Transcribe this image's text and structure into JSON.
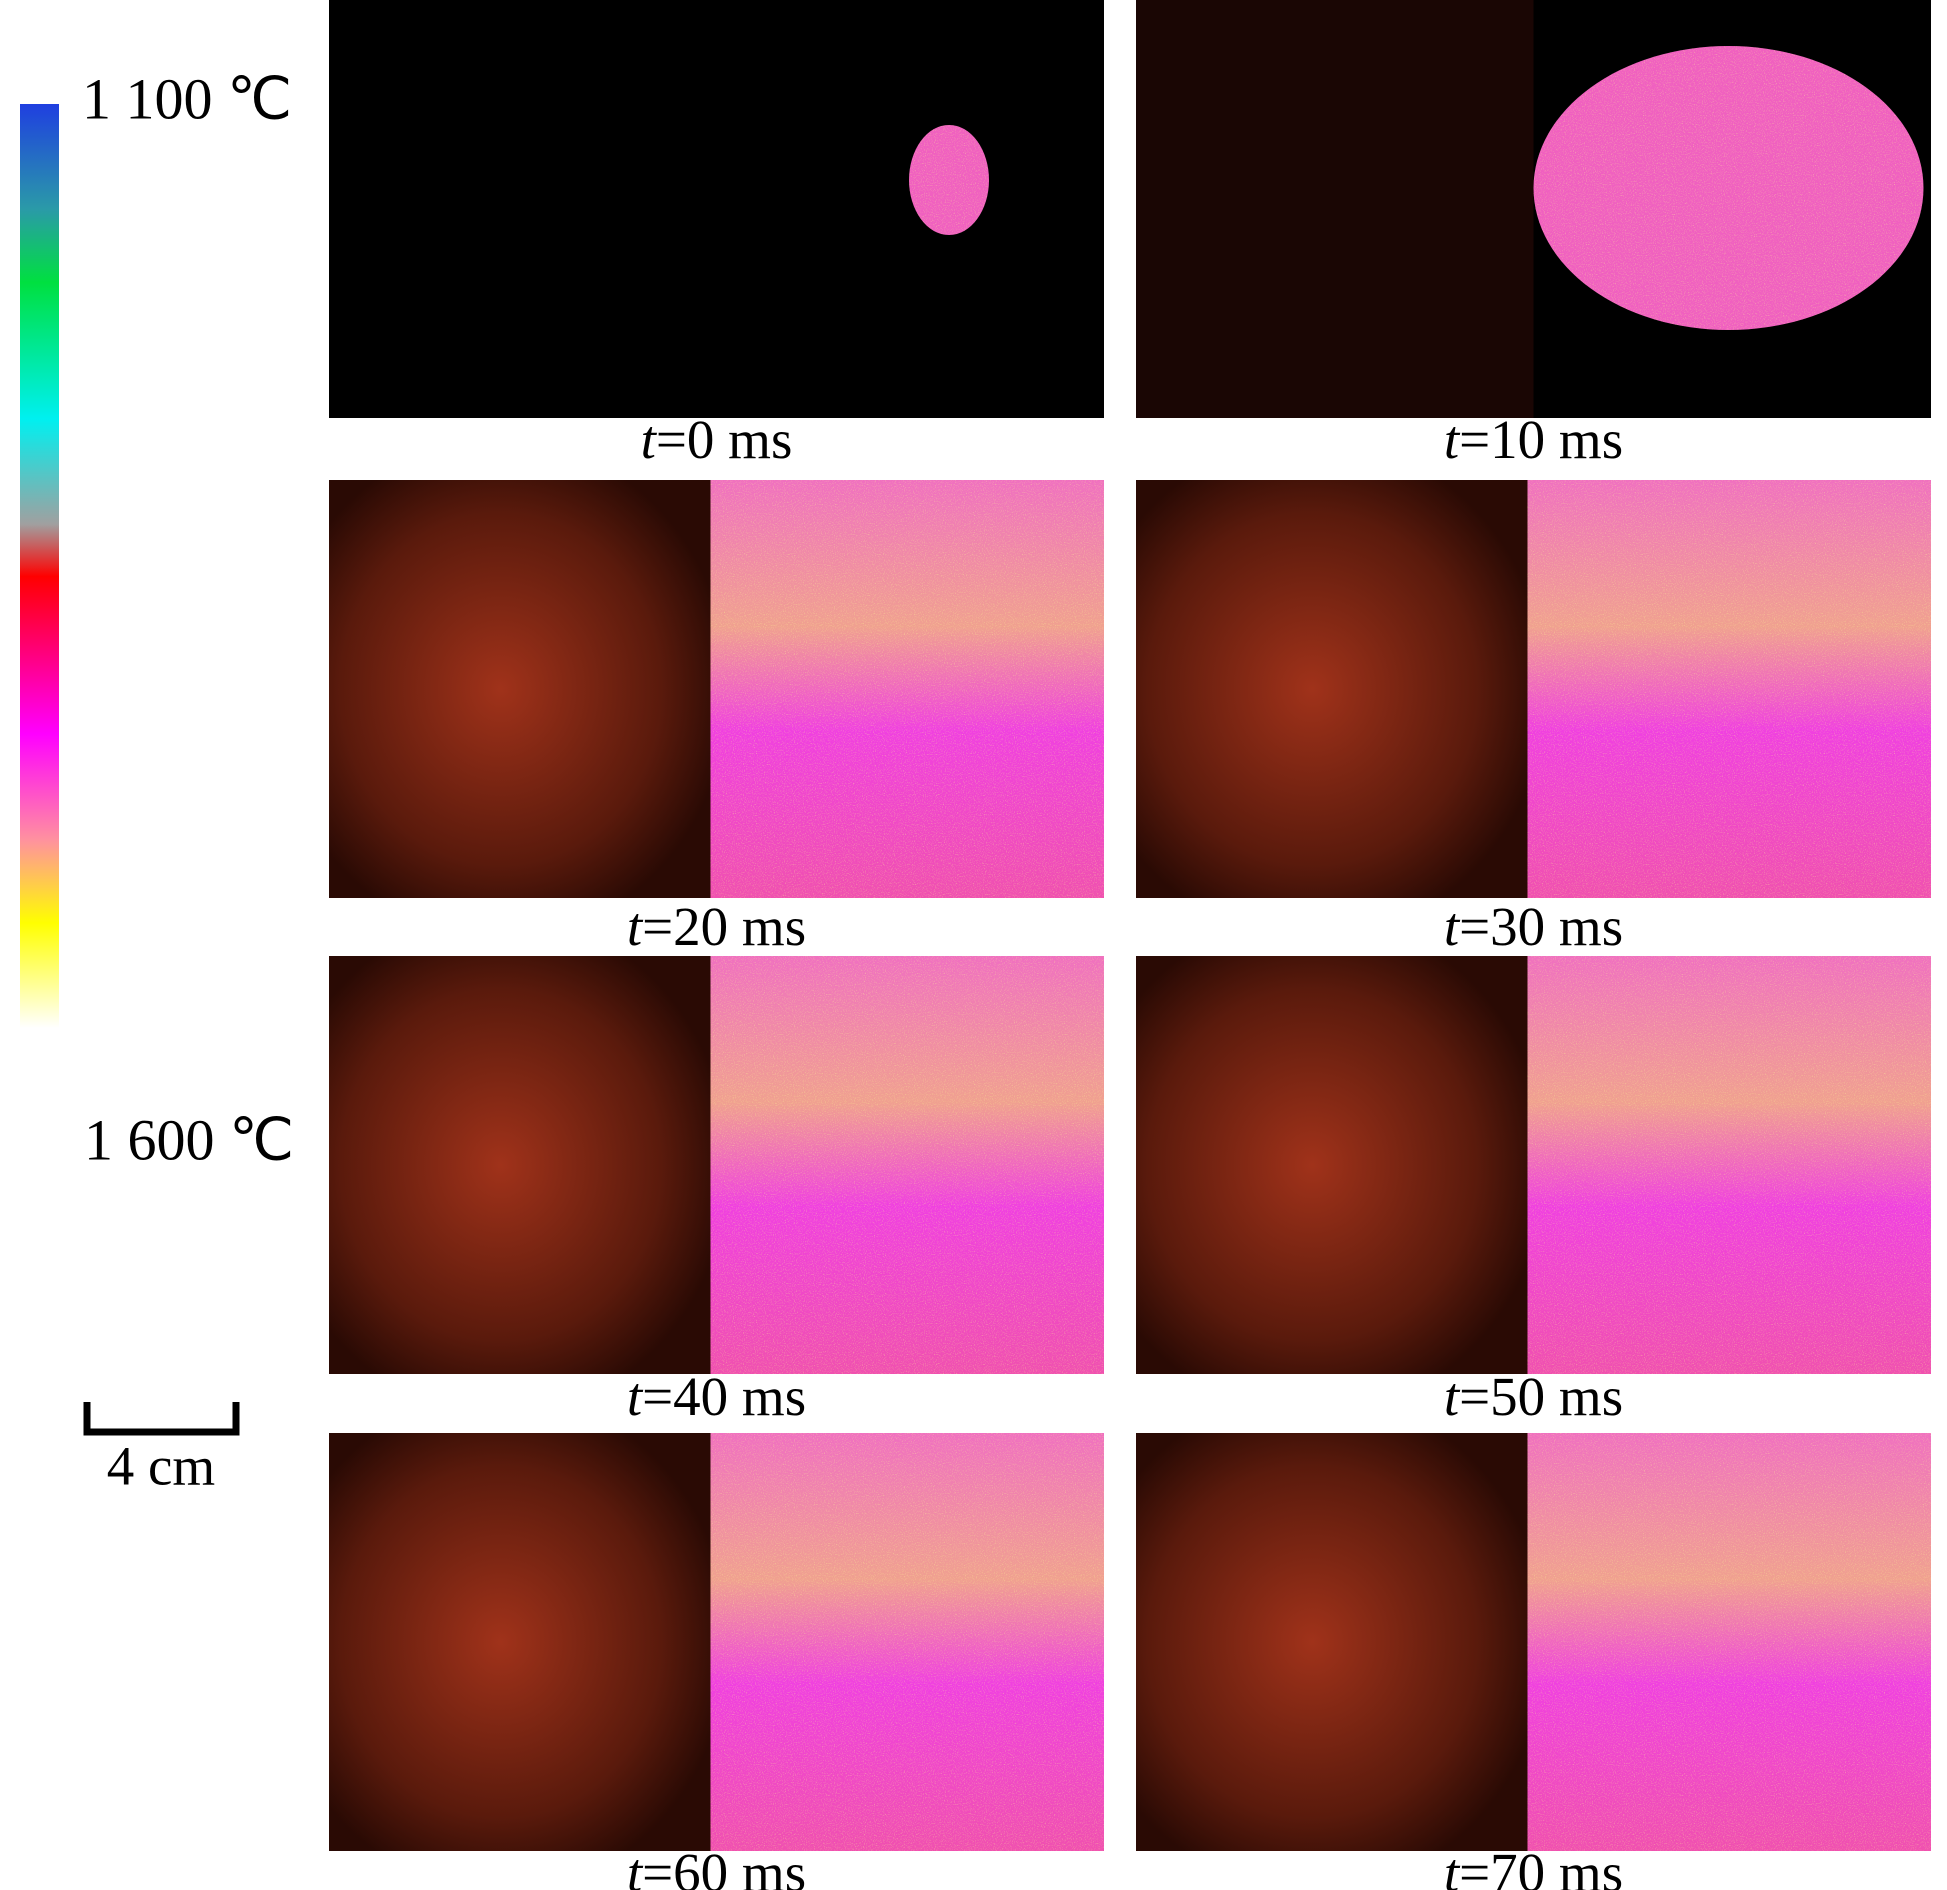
{
  "colorbar": {
    "top_label": "1 100 ℃",
    "bottom_label": "1 600 ℃"
  },
  "scale_bar": {
    "label": "4 cm"
  },
  "panels": [
    {
      "var": "t",
      "label": "=0 ms"
    },
    {
      "var": "t",
      "label": "=10 ms"
    },
    {
      "var": "t",
      "label": "=20 ms"
    },
    {
      "var": "t",
      "label": "=30 ms"
    },
    {
      "var": "t",
      "label": "=40 ms"
    },
    {
      "var": "t",
      "label": "=50 ms"
    },
    {
      "var": "t",
      "label": "=60 ms"
    },
    {
      "var": "t",
      "label": "=70 ms"
    }
  ]
}
